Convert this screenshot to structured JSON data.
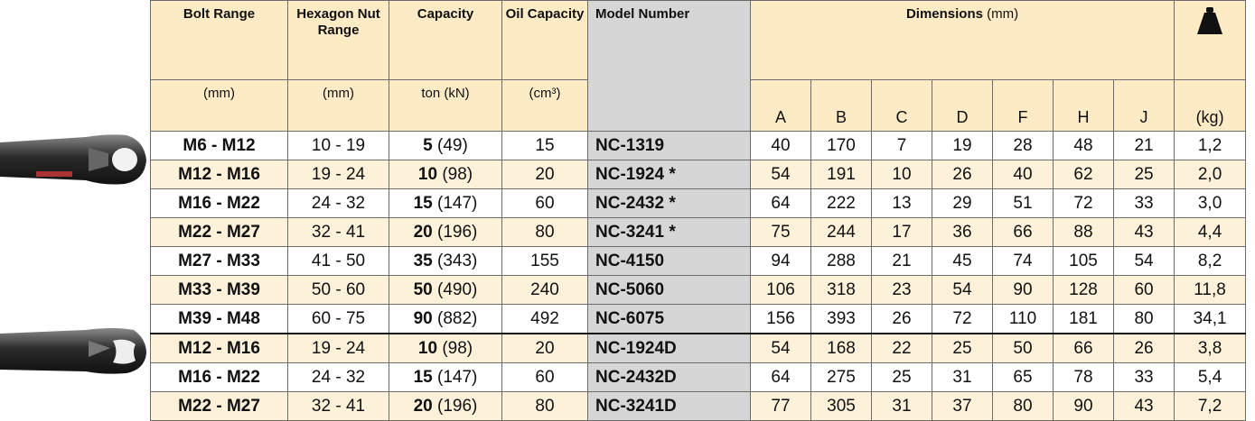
{
  "header": {
    "bolt": "Bolt Range",
    "hex": "Hexagon Nut Range",
    "capacity": "Capacity",
    "oil": "Oil Capacity",
    "model": "Model Number",
    "dimensions": "Dimensions",
    "dimensions_unit": "(mm)",
    "units": [
      "(mm)",
      "(mm)",
      "ton (kN)",
      "(cm³)"
    ],
    "letters": [
      "A",
      "B",
      "C",
      "D",
      "F",
      "H",
      "J"
    ],
    "weight_unit": "(kg)"
  },
  "groups": [
    {
      "rows": [
        [
          "M6 - M12",
          "10 - 19",
          "5",
          "(49)",
          "15",
          "NC-1319",
          "40",
          "170",
          "7",
          "19",
          "28",
          "48",
          "21",
          "1,2"
        ],
        [
          "M12 - M16",
          "19 - 24",
          "10",
          "(98)",
          "20",
          "NC-1924 *",
          "54",
          "191",
          "10",
          "26",
          "40",
          "62",
          "25",
          "2,0"
        ],
        [
          "M16 - M22",
          "24 - 32",
          "15",
          "(147)",
          "60",
          "NC-2432 *",
          "64",
          "222",
          "13",
          "29",
          "51",
          "72",
          "33",
          "3,0"
        ],
        [
          "M22 - M27",
          "32 - 41",
          "20",
          "(196)",
          "80",
          "NC-3241 *",
          "75",
          "244",
          "17",
          "36",
          "66",
          "88",
          "43",
          "4,4"
        ],
        [
          "M27 - M33",
          "41 - 50",
          "35",
          "(343)",
          "155",
          "NC-4150",
          "94",
          "288",
          "21",
          "45",
          "74",
          "105",
          "54",
          "8,2"
        ],
        [
          "M33 - M39",
          "50 - 60",
          "50",
          "(490)",
          "240",
          "NC-5060",
          "106",
          "318",
          "23",
          "54",
          "90",
          "128",
          "60",
          "11,8"
        ],
        [
          "M39 - M48",
          "60 - 75",
          "90",
          "(882)",
          "492",
          "NC-6075",
          "156",
          "393",
          "26",
          "72",
          "110",
          "181",
          "80",
          "34,1"
        ]
      ]
    },
    {
      "rows": [
        [
          "M12 - M16",
          "19 - 24",
          "10",
          "(98)",
          "20",
          "NC-1924D",
          "54",
          "168",
          "22",
          "25",
          "50",
          "66",
          "26",
          "3,8"
        ],
        [
          "M16 - M22",
          "24 - 32",
          "15",
          "(147)",
          "60",
          "NC-2432D",
          "64",
          "275",
          "25",
          "31",
          "65",
          "78",
          "33",
          "5,4"
        ],
        [
          "M22 - M27",
          "32 - 41",
          "20",
          "(196)",
          "80",
          "NC-3241D",
          "77",
          "305",
          "31",
          "37",
          "80",
          "90",
          "43",
          "7,2"
        ]
      ]
    }
  ]
}
